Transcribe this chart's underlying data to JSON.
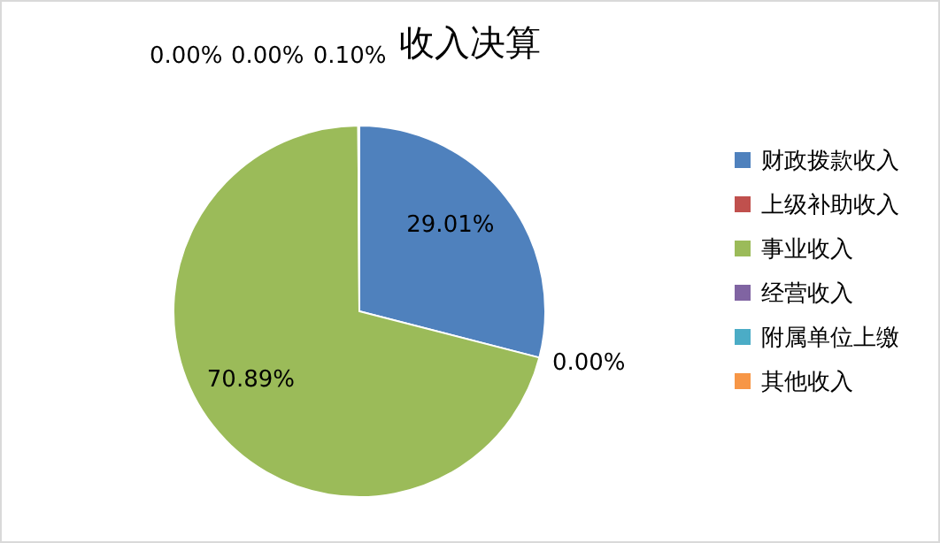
{
  "chart_data": {
    "type": "pie",
    "title": "收入决算",
    "categories": [
      "财政拨款收入",
      "上级补助收入",
      "事业收入",
      "经营收入",
      "附属单位上缴",
      "其他收入"
    ],
    "values": [
      29.01,
      0,
      70.89,
      0,
      0,
      0.1
    ],
    "colors": [
      "#4f81bd",
      "#c0504d",
      "#9bbb59",
      "#8064a2",
      "#4bacc6",
      "#f79646"
    ],
    "value_labels": [
      "29.01%",
      "0.00%",
      "70.89%",
      "0.00%",
      "0.00%",
      "0.10%"
    ],
    "legend": "right"
  }
}
